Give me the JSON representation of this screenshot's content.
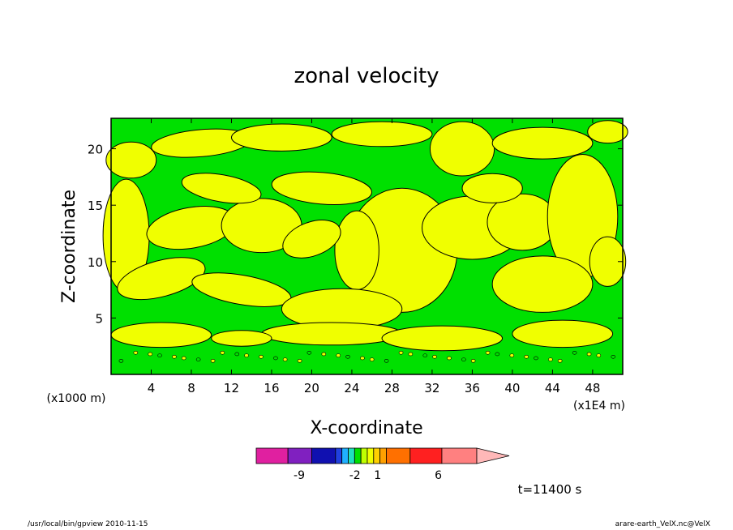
{
  "chart_data": {
    "type": "heatmap",
    "title": "zonal velocity",
    "xlabel": "X-coordinate",
    "ylabel": "Z-coordinate",
    "x_unit_left": "(x1000 m)",
    "x_unit_right": "(x1E4 m)",
    "x_ticks": [
      "4",
      "8",
      "12",
      "16",
      "20",
      "24",
      "28",
      "32",
      "36",
      "40",
      "44",
      "48"
    ],
    "x_tick_values": [
      4,
      8,
      12,
      16,
      20,
      24,
      28,
      32,
      36,
      40,
      44,
      48
    ],
    "y_ticks": [
      "5",
      "10",
      "15",
      "20"
    ],
    "y_tick_values": [
      5,
      10,
      15,
      20
    ],
    "xlim": [
      0,
      51
    ],
    "ylim": [
      0,
      22.7
    ],
    "colorbar": {
      "colors": [
        "#e020a0",
        "#8020c0",
        "#1010b0",
        "#2040e0",
        "#20b0ff",
        "#20e0c0",
        "#00e000",
        "#c0ff00",
        "#f0ff00",
        "#ffd000",
        "#ffa000",
        "#ff7000",
        "#ff2020",
        "#ff8080",
        "#ffb8b8"
      ],
      "labels": [
        "-9",
        "-2",
        "1",
        "6"
      ],
      "label_positions": [
        0.17,
        0.39,
        0.48,
        0.72
      ]
    },
    "field_colors": {
      "low": "#00e000",
      "high": "#f0ff00"
    },
    "time_label": "t=11400 s"
  },
  "footer": {
    "left": "/usr/local/bin/gpview  2010-11-15",
    "right": "arare-earth_VelX.nc@VelX"
  }
}
